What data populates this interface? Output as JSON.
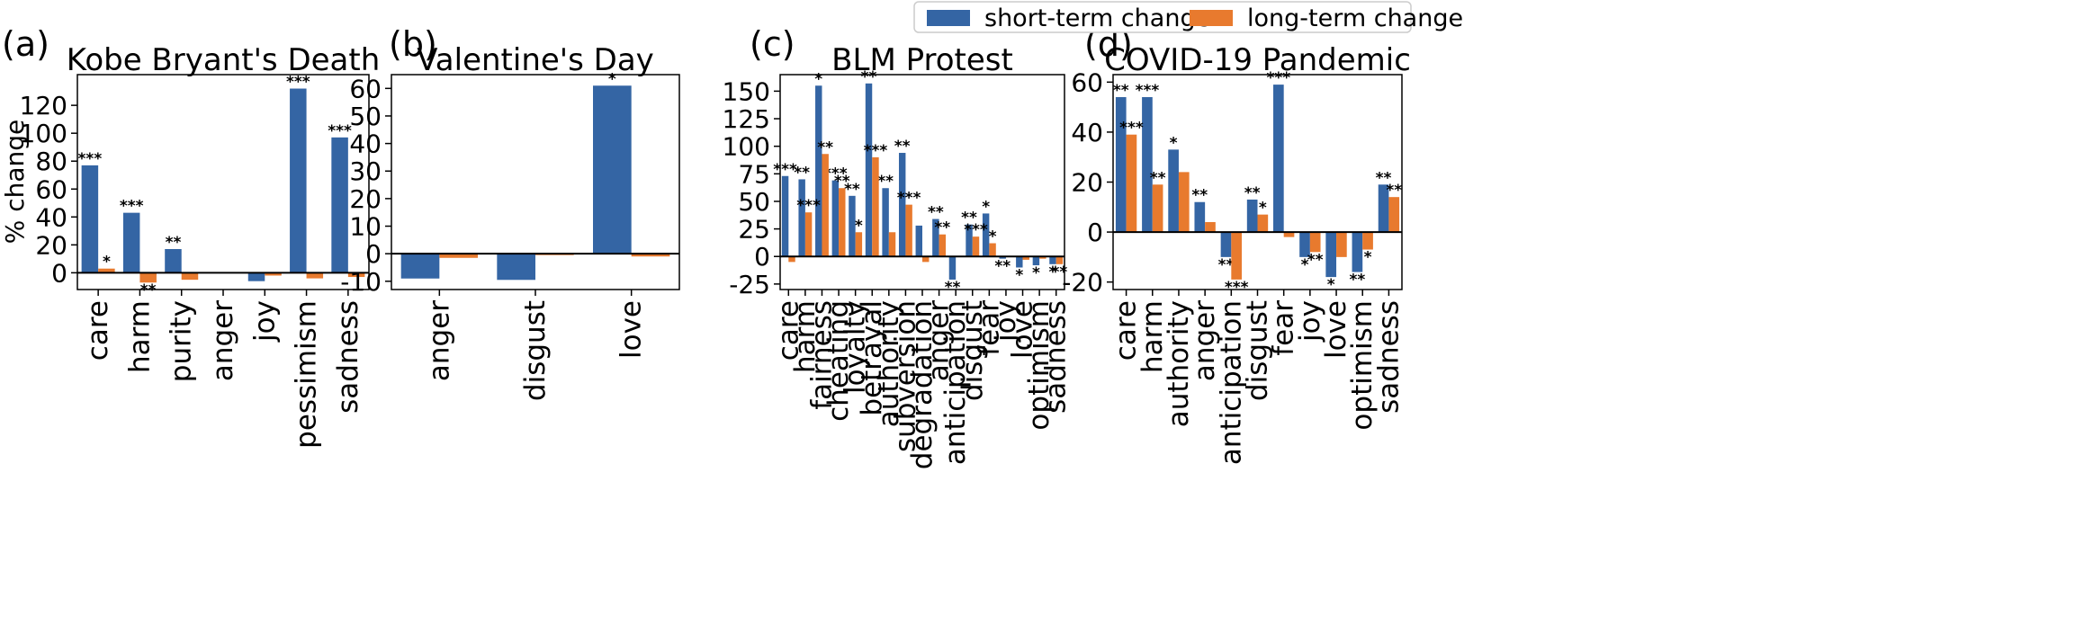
{
  "colors": {
    "short": "#3465a4",
    "long": "#e87a2e",
    "axis": "#000000"
  },
  "legend": {
    "short_label": "short-term change",
    "long_label": "long-term change"
  },
  "ylabel": "% change",
  "chart_data": [
    {
      "type": "bar",
      "label": "(a)",
      "title": "Kobe Bryant's Death",
      "ylim": [
        -12,
        142
      ],
      "yticks": [
        0,
        20,
        40,
        60,
        80,
        100,
        120
      ],
      "categories": [
        "care",
        "harm",
        "purity",
        "anger",
        "joy",
        "pessimism",
        "sadness"
      ],
      "series": [
        {
          "name": "short-term change",
          "values": [
            77,
            43,
            17,
            0,
            -6,
            132,
            97
          ],
          "stars": [
            "***",
            "***",
            "**",
            "",
            "",
            "***",
            "***"
          ]
        },
        {
          "name": "long-term change",
          "values": [
            3,
            -7,
            -5,
            0,
            -2,
            -4,
            -3
          ],
          "stars": [
            "*",
            "**",
            "",
            "",
            "",
            "",
            ""
          ]
        }
      ]
    },
    {
      "type": "bar",
      "label": "(b)",
      "title": "Valentine's Day",
      "ylim": [
        -13,
        65
      ],
      "yticks": [
        -10,
        0,
        10,
        20,
        30,
        40,
        50,
        60
      ],
      "categories": [
        "anger",
        "disgust",
        "love"
      ],
      "series": [
        {
          "name": "short-term change",
          "values": [
            -9,
            -9.5,
            61
          ],
          "stars": [
            "",
            "",
            "*"
          ]
        },
        {
          "name": "long-term change",
          "values": [
            -1.5,
            -0.5,
            -1
          ],
          "stars": [
            "",
            "",
            ""
          ]
        }
      ]
    },
    {
      "type": "bar",
      "label": "(c)",
      "title": "BLM Protest",
      "ylim": [
        -30,
        165
      ],
      "yticks": [
        -25,
        0,
        25,
        50,
        75,
        100,
        125,
        150
      ],
      "categories": [
        "care",
        "harm",
        "fairness",
        "cheating",
        "loyalty",
        "betrayal",
        "authority",
        "subversion",
        "degradation",
        "anger",
        "anticipation",
        "disgust",
        "fear",
        "joy",
        "love",
        "optimism",
        "sadness"
      ],
      "series": [
        {
          "name": "short-term change",
          "values": [
            73,
            70,
            155,
            69,
            55,
            157,
            62,
            94,
            28,
            34,
            -21,
            29,
            39,
            -2,
            -10,
            -8,
            -7
          ],
          "stars": [
            "***",
            "**",
            "*",
            "***",
            "**",
            "**",
            "**",
            "**",
            "",
            "**",
            "**",
            "**",
            "*",
            "**",
            "*",
            "*",
            "*"
          ]
        },
        {
          "name": "long-term change",
          "values": [
            -5,
            40,
            93,
            62,
            22,
            90,
            22,
            47,
            -5,
            20,
            0,
            18,
            12,
            0,
            -3,
            -2,
            -7
          ],
          "stars": [
            "",
            "***",
            "**",
            "**",
            "*",
            "***",
            "",
            "***",
            "",
            "**",
            "",
            "***",
            "*",
            "",
            "",
            "",
            "**"
          ]
        }
      ]
    },
    {
      "type": "bar",
      "label": "(d)",
      "title": "COVID-19 Pandemic",
      "ylim": [
        -23,
        63
      ],
      "yticks": [
        -20,
        0,
        20,
        40,
        60
      ],
      "categories": [
        "care",
        "harm",
        "authority",
        "anger",
        "anticipation",
        "disgust",
        "fear",
        "joy",
        "love",
        "optimism",
        "sadness"
      ],
      "series": [
        {
          "name": "short-term change",
          "values": [
            54,
            54,
            33,
            12,
            -10,
            13,
            59,
            -10,
            -18,
            -16,
            19
          ],
          "stars": [
            "**",
            "***",
            "*",
            "**",
            "**",
            "**",
            "***",
            "*",
            "*",
            "**",
            "**"
          ]
        },
        {
          "name": "long-term change",
          "values": [
            39,
            19,
            24,
            4,
            -19,
            7,
            -2,
            -8,
            -10,
            -7,
            14
          ],
          "stars": [
            "***",
            "**",
            "",
            "",
            "***",
            "*",
            "",
            "**",
            "",
            "*",
            "**"
          ]
        }
      ]
    }
  ]
}
